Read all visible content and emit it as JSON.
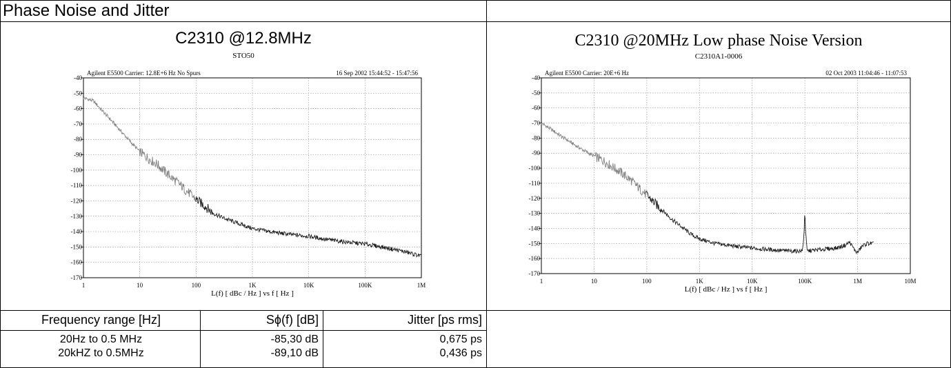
{
  "section_title": "Phase Noise and Jitter",
  "colors": {
    "trace_light": "#808080",
    "trace_dark": "#1a1a1a",
    "grid": "#9a9a9a",
    "border": "#000000"
  },
  "chart_data": [
    {
      "type": "line",
      "title": "C2310 @12.8MHz",
      "subtitle": "STO50",
      "header_left": "Agilent E5500   Carrier: 12.8E+6 Hz  No Spurs",
      "header_right": "16 Sep 2002  15:44:52 - 15:47:56",
      "xlabel": "L(f)  [ dBc / Hz ]  vs  f  [ Hz ]",
      "x_scale": "log",
      "xlim": [
        1,
        1000000
      ],
      "ylim": [
        -170,
        -40
      ],
      "grid": true,
      "x_ticks": [
        1,
        10,
        100,
        1000,
        10000,
        100000,
        1000000
      ],
      "x_tick_labels": [
        "1",
        "10",
        "100",
        "1K",
        "10K",
        "100K",
        "1M"
      ],
      "y_ticks": [
        -40,
        -50,
        -60,
        -70,
        -80,
        -90,
        -100,
        -110,
        -120,
        -130,
        -140,
        -150,
        -160,
        -170
      ],
      "y_tick_labels": [
        "-40",
        "-50",
        "-60",
        "-70",
        "-80",
        "-90",
        "-100",
        "-110",
        "-120",
        "-130",
        "-140",
        "-150",
        "-160",
        "-170"
      ],
      "series": [
        {
          "x": [
            1,
            1.5,
            2,
            3,
            5,
            7,
            10,
            15,
            20,
            30,
            50,
            70,
            100,
            150,
            200,
            300,
            500,
            700,
            1000,
            2000,
            5000,
            10000,
            20000,
            50000,
            100000,
            200000,
            500000,
            1000000
          ],
          "y": [
            -53,
            -55,
            -60,
            -67,
            -76,
            -82,
            -88,
            -93,
            -96,
            -102,
            -109,
            -114,
            -119,
            -124,
            -128,
            -131,
            -134,
            -136,
            -138,
            -140,
            -142,
            -143,
            -145,
            -147,
            -148,
            -150,
            -153,
            -156
          ]
        }
      ]
    },
    {
      "type": "line",
      "title": "C2310 @20MHz Low phase Noise Version",
      "subtitle": "C2310A1-0006",
      "header_left": "Agilent E5500   Carrier: 20E+6 Hz",
      "header_right": "02 Oct 2003  11:04:46 - 11:07:53",
      "xlabel": "L(f)  [ dBc / Hz ]  vs  f  [ Hz ]",
      "x_scale": "log",
      "xlim": [
        1,
        10000000
      ],
      "ylim": [
        -170,
        -40
      ],
      "grid": true,
      "x_ticks": [
        1,
        10,
        100,
        1000,
        10000,
        100000,
        1000000,
        10000000
      ],
      "x_tick_labels": [
        "1",
        "10",
        "100",
        "1K",
        "10K",
        "100K",
        "1M",
        "10M"
      ],
      "y_ticks": [
        -40,
        -50,
        -60,
        -70,
        -80,
        -90,
        -100,
        -110,
        -120,
        -130,
        -140,
        -150,
        -160,
        -170
      ],
      "y_tick_labels": [
        "-40",
        "-50",
        "-60",
        "-70",
        "-80",
        "-90",
        "-100",
        "-110",
        "-120",
        "-130",
        "-140",
        "-150",
        "-160",
        "-170"
      ],
      "series": [
        {
          "x": [
            1,
            1.5,
            2,
            3,
            5,
            7,
            10,
            15,
            20,
            30,
            50,
            70,
            100,
            150,
            200,
            300,
            500,
            700,
            1000,
            2000,
            5000,
            10000,
            20000,
            50000,
            90000,
            98000,
            100000,
            102000,
            110000,
            200000,
            400000,
            600000,
            700000,
            800000,
            900000,
            1000000,
            1200000,
            1500000,
            2000000
          ],
          "y": [
            -70,
            -74,
            -77,
            -81,
            -86,
            -89,
            -92,
            -95,
            -98,
            -102,
            -108,
            -113,
            -118,
            -124,
            -128,
            -134,
            -140,
            -144,
            -147,
            -150,
            -152,
            -153,
            -154,
            -155,
            -155,
            -140,
            -123,
            -140,
            -155,
            -154,
            -153,
            -151,
            -149,
            -152,
            -155,
            -156,
            -152,
            -150,
            -150
          ]
        }
      ]
    }
  ],
  "table": {
    "headers": [
      "Frequency range [Hz]",
      "Sϕ(f) [dB]",
      "Jitter [ps rms]"
    ],
    "rows": [
      [
        "20Hz to 0.5 MHz",
        "-85,30 dB",
        "0,675 ps"
      ],
      [
        "20kHZ to 0.5MHz",
        "-89,10 dB",
        "0,436 ps"
      ]
    ]
  }
}
